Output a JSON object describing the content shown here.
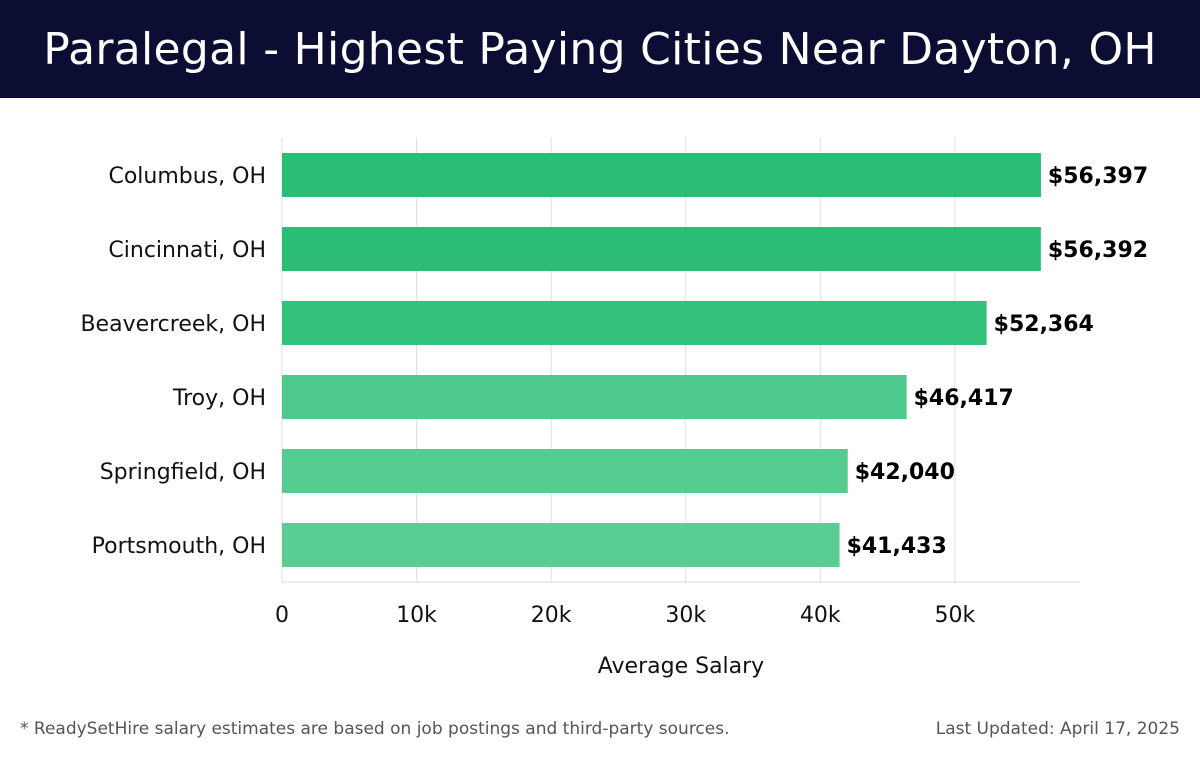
{
  "header": {
    "title": "Paralegal - Highest Paying Cities Near Dayton, OH"
  },
  "chart_data": {
    "type": "bar",
    "orientation": "horizontal",
    "title": "Paralegal - Highest Paying Cities Near Dayton, OH",
    "categories": [
      "Columbus, OH",
      "Cincinnati, OH",
      "Beavercreek, OH",
      "Troy, OH",
      "Springfield, OH",
      "Portsmouth, OH"
    ],
    "values": [
      56397,
      56392,
      52364,
      46417,
      42040,
      41433
    ],
    "value_labels": [
      "$56,397",
      "$56,392",
      "$52,364",
      "$46,417",
      "$42,040",
      "$41,433"
    ],
    "bar_colors": [
      "#2bbd76",
      "#2bbd76",
      "#33c27c",
      "#4cc98b",
      "#54cc90",
      "#5acd93"
    ],
    "xlabel": "Average Salary",
    "ylabel": "",
    "xlim": [
      0,
      59300
    ],
    "xticks": [
      0,
      10000,
      20000,
      30000,
      40000,
      50000
    ],
    "xtick_labels": [
      "0",
      "10k",
      "20k",
      "30k",
      "40k",
      "50k"
    ],
    "grid": "vertical",
    "legend": "none"
  },
  "footer": {
    "note": "* ReadySetHire salary estimates are based on job postings and third-party sources.",
    "updated": "Last Updated: April 17, 2025"
  }
}
